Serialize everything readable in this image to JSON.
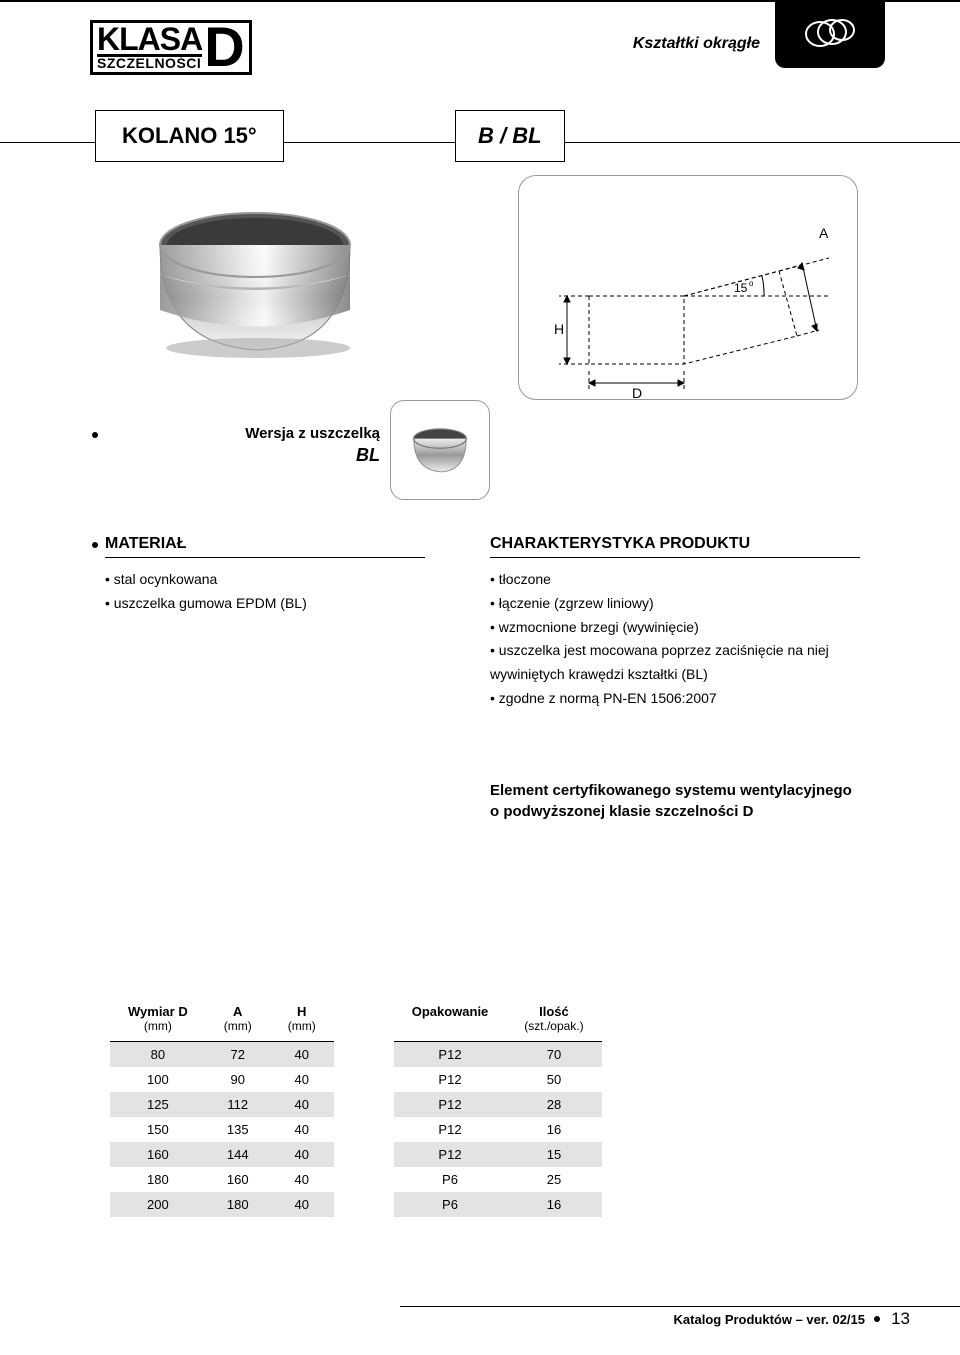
{
  "header": {
    "breadcrumb": "Kształtki okrągłe",
    "logo_top": "KLASA",
    "logo_bottom": "SZCZELNOŚCI",
    "logo_letter": "D"
  },
  "title": {
    "name": "KOLANO 15°",
    "code": "B / BL"
  },
  "variant": {
    "label": "Wersja z uszczelką",
    "code": "BL"
  },
  "diagram": {
    "label_a": "A",
    "label_h": "H",
    "label_d": "D",
    "angle": "15",
    "angle_deg": "o"
  },
  "material": {
    "heading": "MATERIAŁ",
    "items": [
      "stal ocynkowana",
      "uszczelka gumowa EPDM (BL)"
    ]
  },
  "characteristics": {
    "heading": "CHARAKTERYSTYKA PRODUKTU",
    "items": [
      "tłoczone",
      "łączenie (zgrzew liniowy)",
      "wzmocnione brzegi (wywinięcie)",
      "uszczelka jest mocowana poprzez zaciśnięcie na niej wywiniętych krawędzi kształtki (BL)",
      "zgodne z normą PN-EN 1506:2007"
    ]
  },
  "cert": {
    "line1": "Element certyfikowanego systemu wentylacyjnego",
    "line2": "o podwyższonej klasie szczelności D"
  },
  "table1": {
    "headers": [
      {
        "main": "Wymiar D",
        "sub": "(mm)"
      },
      {
        "main": "A",
        "sub": "(mm)"
      },
      {
        "main": "H",
        "sub": "(mm)"
      }
    ],
    "rows": [
      [
        "80",
        "72",
        "40"
      ],
      [
        "100",
        "90",
        "40"
      ],
      [
        "125",
        "112",
        "40"
      ],
      [
        "150",
        "135",
        "40"
      ],
      [
        "160",
        "144",
        "40"
      ],
      [
        "180",
        "160",
        "40"
      ],
      [
        "200",
        "180",
        "40"
      ]
    ]
  },
  "table2": {
    "headers": [
      {
        "main": "Opakowanie",
        "sub": ""
      },
      {
        "main": "Ilość",
        "sub": "(szt./opak.)"
      }
    ],
    "rows": [
      [
        "P12",
        "70"
      ],
      [
        "P12",
        "50"
      ],
      [
        "P12",
        "28"
      ],
      [
        "P12",
        "16"
      ],
      [
        "P12",
        "15"
      ],
      [
        "P6",
        "25"
      ],
      [
        "P6",
        "16"
      ]
    ]
  },
  "footer": {
    "text": "Katalog Produktów – ver. 02/15",
    "page": "13"
  },
  "colors": {
    "row_alt": "#e3e3e3",
    "border": "#000000",
    "bg": "#ffffff"
  }
}
